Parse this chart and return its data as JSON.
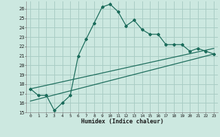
{
  "xlabel": "Humidex (Indice chaleur)",
  "bg_color": "#cce8e0",
  "grid_color": "#a8ccc4",
  "line_color": "#1a6b5a",
  "xlim": [
    -0.5,
    23.5
  ],
  "ylim": [
    15,
    26.8
  ],
  "xticks": [
    0,
    1,
    2,
    3,
    4,
    5,
    6,
    7,
    8,
    9,
    10,
    11,
    12,
    13,
    14,
    15,
    16,
    17,
    18,
    19,
    20,
    21,
    22,
    23
  ],
  "yticks": [
    15,
    16,
    17,
    18,
    19,
    20,
    21,
    22,
    23,
    24,
    25,
    26
  ],
  "main_x": [
    0,
    1,
    2,
    3,
    4,
    5,
    6,
    7,
    8,
    9,
    10,
    11,
    12,
    13,
    14,
    15,
    16,
    17,
    18,
    19,
    20,
    21,
    22,
    23
  ],
  "main_y": [
    17.5,
    16.8,
    16.8,
    15.2,
    16.0,
    16.8,
    21.0,
    22.8,
    24.5,
    26.2,
    26.5,
    25.7,
    24.2,
    24.8,
    23.8,
    23.3,
    23.3,
    22.2,
    22.2,
    22.2,
    21.5,
    21.8,
    21.5,
    21.2
  ],
  "ref_line1_x": [
    0,
    23
  ],
  "ref_line1_y": [
    17.5,
    21.8
  ],
  "ref_line2_x": [
    0,
    23
  ],
  "ref_line2_y": [
    16.2,
    21.2
  ]
}
